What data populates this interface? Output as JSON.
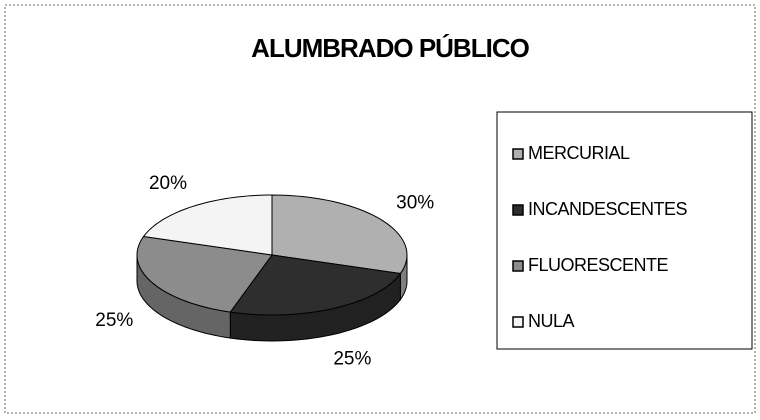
{
  "chart_data": {
    "type": "pie",
    "title": "ALUMBRADO PÚBLICO",
    "categories": [
      "MERCURIAL",
      "INCANDESCENTES",
      "FLUORESCENTE",
      "NULA"
    ],
    "values": [
      30,
      25,
      25,
      20
    ],
    "value_labels": [
      "30%",
      "25%",
      "25%",
      "20%"
    ],
    "colors": [
      "#b0b0b0",
      "#2e2e2e",
      "#8c8c8c",
      "#f4f4f4"
    ],
    "legend": "right"
  }
}
